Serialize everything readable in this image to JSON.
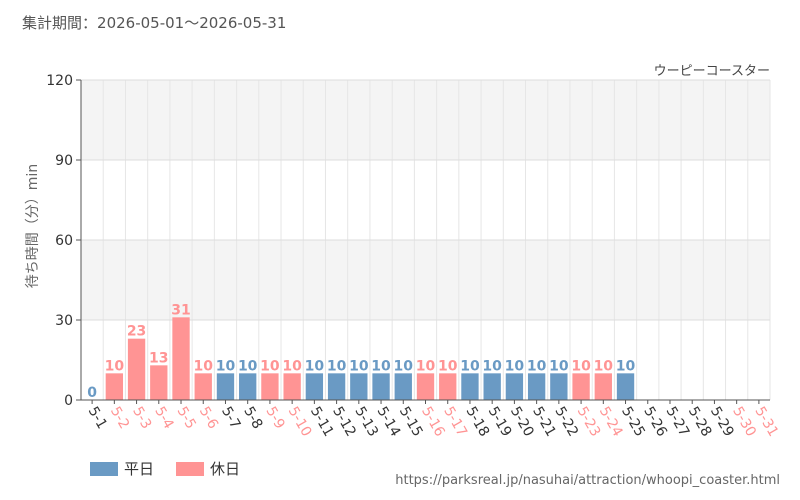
{
  "header": {
    "period_label": "集計期間",
    "period_range": "2026-05-01～2026-05-31"
  },
  "legend": {
    "weekday_label": "平日",
    "holiday_label": "休日"
  },
  "footer": {
    "url": "https://parksreal.jp/nasuhai/attraction/whoopi_coaster.html"
  },
  "colors": {
    "weekday": "#6a9ac4",
    "holiday": "#ff9494",
    "band": "#f4f4f4"
  },
  "chart_data": {
    "type": "bar",
    "title": "ウーピーコースター",
    "ylabel": "待ち時間（分）min",
    "xlabel": "",
    "ylim": [
      0,
      120
    ],
    "yticks": [
      0,
      30,
      60,
      90,
      120
    ],
    "grid": true,
    "legend_position": "bottom-left",
    "categories": [
      "5-1",
      "5-2",
      "5-3",
      "5-4",
      "5-5",
      "5-6",
      "5-7",
      "5-8",
      "5-9",
      "5-10",
      "5-11",
      "5-12",
      "5-13",
      "5-14",
      "5-15",
      "5-16",
      "5-17",
      "5-18",
      "5-19",
      "5-20",
      "5-21",
      "5-22",
      "5-23",
      "5-24",
      "5-25",
      "5-26",
      "5-27",
      "5-28",
      "5-29",
      "5-30",
      "5-31"
    ],
    "values": [
      0,
      10,
      23,
      13,
      31,
      10,
      10,
      10,
      10,
      10,
      10,
      10,
      10,
      10,
      10,
      10,
      10,
      10,
      10,
      10,
      10,
      10,
      10,
      10,
      10,
      null,
      null,
      null,
      null,
      null,
      null
    ],
    "day_types": [
      "weekday",
      "holiday",
      "holiday",
      "holiday",
      "holiday",
      "holiday",
      "weekday",
      "weekday",
      "holiday",
      "holiday",
      "weekday",
      "weekday",
      "weekday",
      "weekday",
      "weekday",
      "holiday",
      "holiday",
      "weekday",
      "weekday",
      "weekday",
      "weekday",
      "weekday",
      "holiday",
      "holiday",
      "weekday",
      "weekday",
      "weekday",
      "weekday",
      "weekday",
      "holiday",
      "holiday"
    ]
  }
}
